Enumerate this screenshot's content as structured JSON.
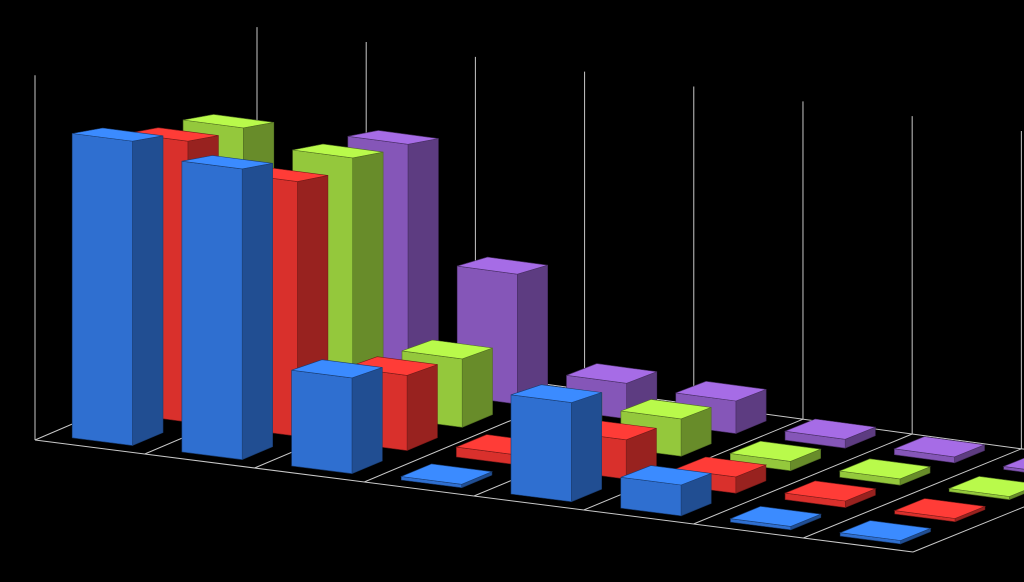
{
  "chart_data": {
    "type": "bar",
    "subtype": "3d-column",
    "title": "",
    "xlabel": "",
    "ylabel": "",
    "categories": [
      "",
      "",
      "",
      "",
      "",
      "",
      "",
      ""
    ],
    "series": [
      {
        "values": [
          8.9,
          8.5,
          2.8,
          0.1,
          2.9,
          0.9,
          0.1,
          0.1
        ],
        "color": "#2f6fd0"
      },
      {
        "values": [
          8.6,
          7.8,
          2.3,
          0.3,
          1.2,
          0.5,
          0.2,
          0.1
        ],
        "color": "#d9302c"
      },
      {
        "values": [
          8.7,
          8.2,
          2.2,
          1.2,
          1.2,
          0.3,
          0.2,
          0.1
        ],
        "color": "#94c83c"
      },
      {
        "values": [
          0.5,
          8.3,
          4.4,
          1.2,
          1.1,
          0.3,
          0.2,
          0.1
        ],
        "color": "#8556b8"
      }
    ],
    "ylim": [
      0,
      11
    ],
    "grid": true,
    "legend": "none",
    "background": "#000000",
    "gridline_color": "#c8c8c8"
  }
}
